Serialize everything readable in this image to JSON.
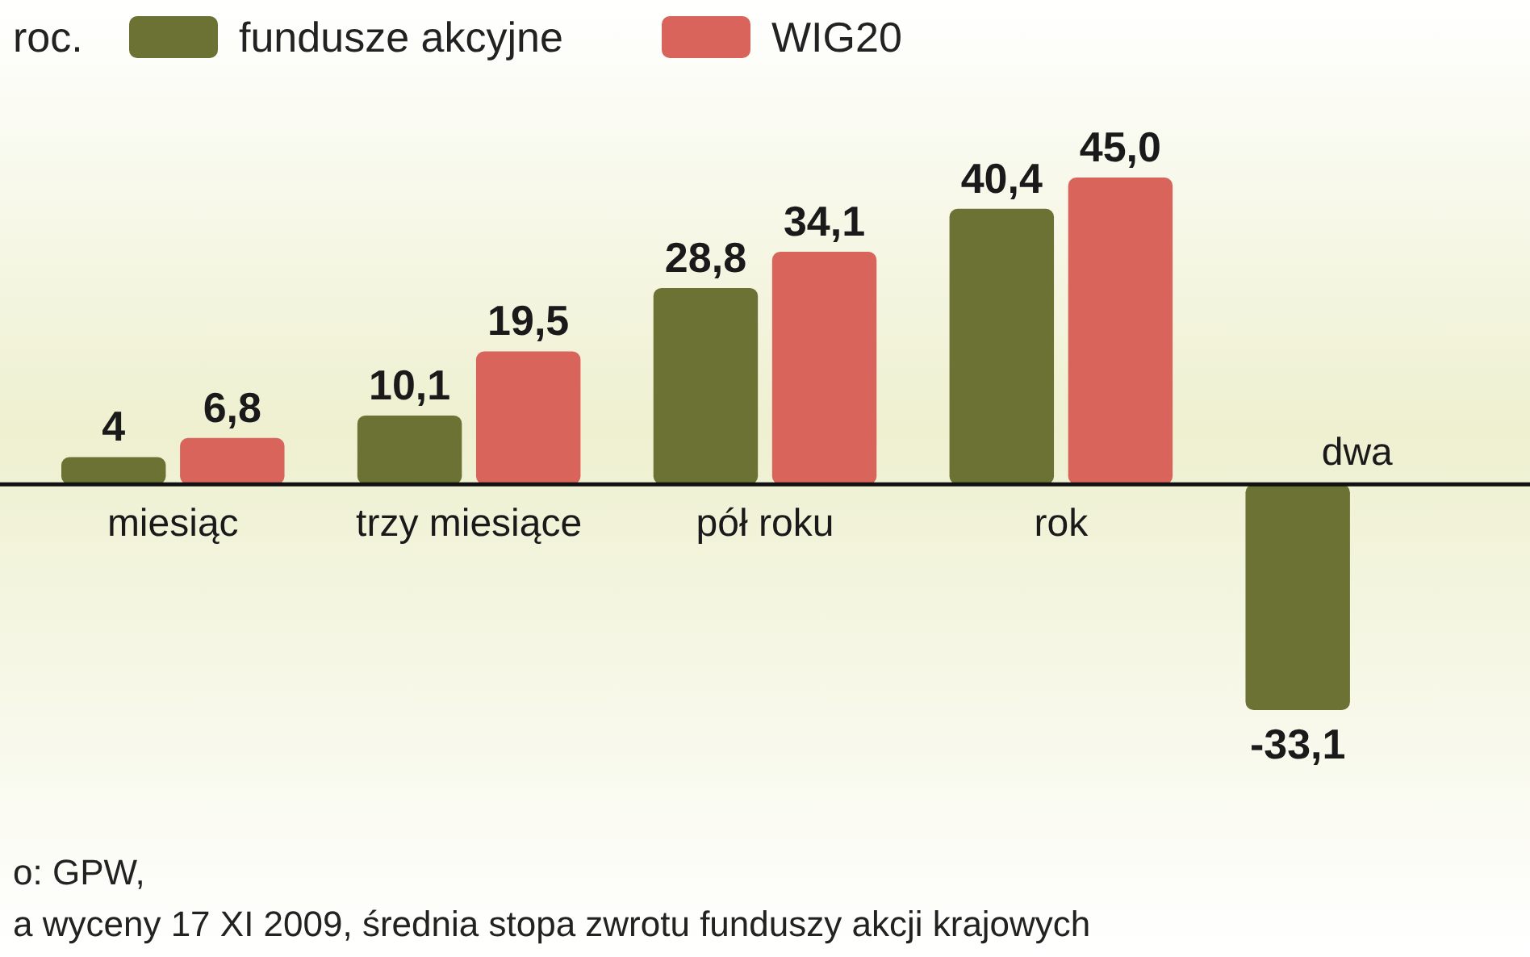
{
  "chart_data": {
    "type": "bar",
    "legend_title": "roc.",
    "legend": "top left",
    "categories": [
      "miesiąc",
      "trzy miesiące",
      "pół roku",
      "rok",
      "dwa"
    ],
    "series": [
      {
        "name": "fundusze akcyjne",
        "color": "#6b7234",
        "values": [
          4,
          10.1,
          28.8,
          40.4,
          -33.1
        ],
        "value_labels": [
          "4",
          "10,1",
          "28,8",
          "40,4",
          "-33,1"
        ]
      },
      {
        "name": "WIG20",
        "color": "#d9645b",
        "values": [
          6.8,
          19.5,
          34.1,
          45.0,
          null
        ],
        "value_labels": [
          "6,8",
          "19,5",
          "34,1",
          "45,0",
          null
        ]
      }
    ],
    "annotations": [
      "o: GPW,",
      "a wyceny 17 XI 2009, średnia stopa zwrotu funduszy akcji krajowych"
    ]
  }
}
